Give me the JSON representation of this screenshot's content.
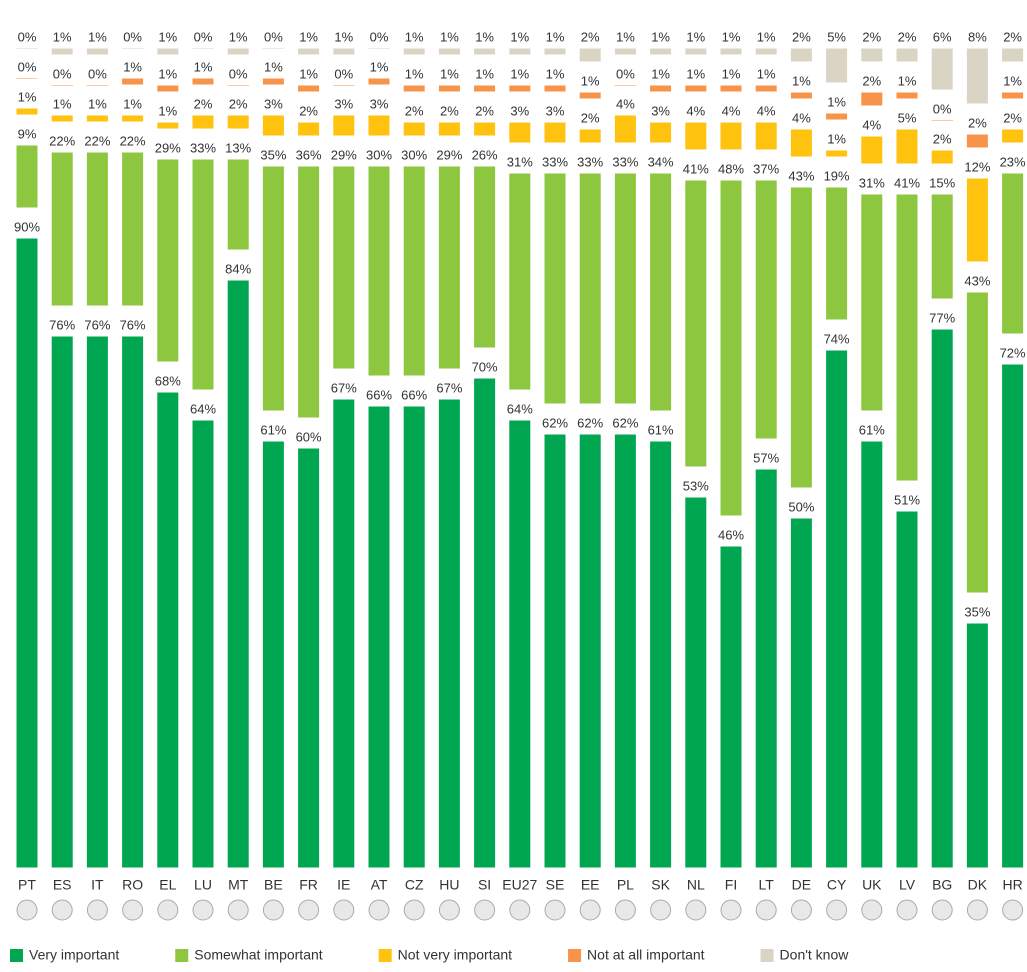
{
  "chart_data": {
    "type": "bar",
    "stacked": true,
    "categories": [
      "PT",
      "ES",
      "IT",
      "RO",
      "EL",
      "LU",
      "MT",
      "BE",
      "FR",
      "IE",
      "AT",
      "CZ",
      "HU",
      "SI",
      "EU27",
      "SE",
      "EE",
      "PL",
      "SK",
      "NL",
      "FI",
      "LT",
      "DE",
      "CY",
      "UK",
      "LV",
      "BG",
      "DK",
      "HR"
    ],
    "series": [
      {
        "name": "Very important",
        "color": "#00a650",
        "values": [
          90,
          76,
          76,
          76,
          68,
          64,
          84,
          61,
          60,
          67,
          66,
          66,
          67,
          70,
          64,
          62,
          62,
          62,
          61,
          53,
          46,
          57,
          50,
          74,
          61,
          51,
          77,
          35,
          72
        ],
        "value_labels": [
          "90%",
          "76%",
          "76%",
          "76%",
          "68%",
          "64%",
          "84%",
          "61%",
          "60%",
          "67%",
          "66%",
          "66%",
          "67%",
          "70%",
          "64%",
          "62%",
          "62%",
          "62%",
          "61%",
          "53%",
          "46%",
          "57%",
          "50%",
          "74%",
          "61%",
          "51%",
          "77%",
          "35%",
          "72%"
        ]
      },
      {
        "name": "Somewhat important",
        "color": "#8dc63f",
        "values": [
          9,
          22,
          22,
          22,
          29,
          33,
          13,
          35,
          36,
          29,
          30,
          30,
          29,
          26,
          31,
          33,
          33,
          33,
          34,
          41,
          48,
          37,
          43,
          19,
          31,
          41,
          15,
          43,
          23
        ],
        "value_labels": [
          "9%",
          "22%",
          "22%",
          "22%",
          "29%",
          "33%",
          "13%",
          "35%",
          "36%",
          "29%",
          "30%",
          "30%",
          "29%",
          "26%",
          "31%",
          "33%",
          "33%",
          "33%",
          "34%",
          "41%",
          "48%",
          "37%",
          "43%",
          "19%",
          "31%",
          "41%",
          "15%",
          "43%",
          "23%"
        ]
      },
      {
        "name": "Not very important",
        "color": "#ffc20e",
        "values": [
          1,
          1,
          1,
          1,
          1,
          2,
          2,
          3,
          2,
          3,
          3,
          2,
          2,
          2,
          3,
          3,
          2,
          4,
          3,
          4,
          4,
          4,
          4,
          1,
          4,
          5,
          2,
          12,
          2
        ],
        "value_labels": [
          "1%",
          "1%",
          "1%",
          "1%",
          "1%",
          "2%",
          "2%",
          "3%",
          "2%",
          "3%",
          "3%",
          "2%",
          "2%",
          "2%",
          "3%",
          "3%",
          "2%",
          "4%",
          "3%",
          "4%",
          "4%",
          "4%",
          "4%",
          "1%",
          "4%",
          "5%",
          "2%",
          "12%",
          "2%"
        ]
      },
      {
        "name": "Not at all important",
        "color": "#f7944a",
        "values": [
          0,
          0,
          0,
          1,
          1,
          1,
          0,
          1,
          1,
          0,
          1,
          1,
          1,
          1,
          1,
          1,
          1,
          0,
          1,
          1,
          1,
          1,
          1,
          1,
          2,
          1,
          0,
          2,
          1
        ],
        "value_labels": [
          "0%",
          "0%",
          "0%",
          "1%",
          "1%",
          "1%",
          "0%",
          "1%",
          "1%",
          "0%",
          "1%",
          "1%",
          "1%",
          "1%",
          "1%",
          "1%",
          "1%",
          "0%",
          "1%",
          "1%",
          "1%",
          "1%",
          "1%",
          "1%",
          "2%",
          "1%",
          "0%",
          "2%",
          "1%"
        ]
      },
      {
        "name": "Don't know",
        "color": "#d9d4c3",
        "values": [
          0,
          1,
          1,
          0,
          1,
          0,
          1,
          0,
          1,
          1,
          0,
          1,
          1,
          1,
          1,
          1,
          2,
          1,
          1,
          1,
          1,
          1,
          2,
          5,
          2,
          2,
          6,
          8,
          2
        ],
        "value_labels": [
          "0%",
          "1%",
          "1%",
          "0%",
          "1%",
          "0%",
          "1%",
          "0%",
          "1%",
          "1%",
          "0%",
          "1%",
          "1%",
          "1%",
          "1%",
          "1%",
          "2%",
          "1%",
          "1%",
          "1%",
          "1%",
          "1%",
          "2%",
          "5%",
          "2%",
          "2%",
          "6%",
          "8%",
          "2%"
        ]
      }
    ]
  }
}
